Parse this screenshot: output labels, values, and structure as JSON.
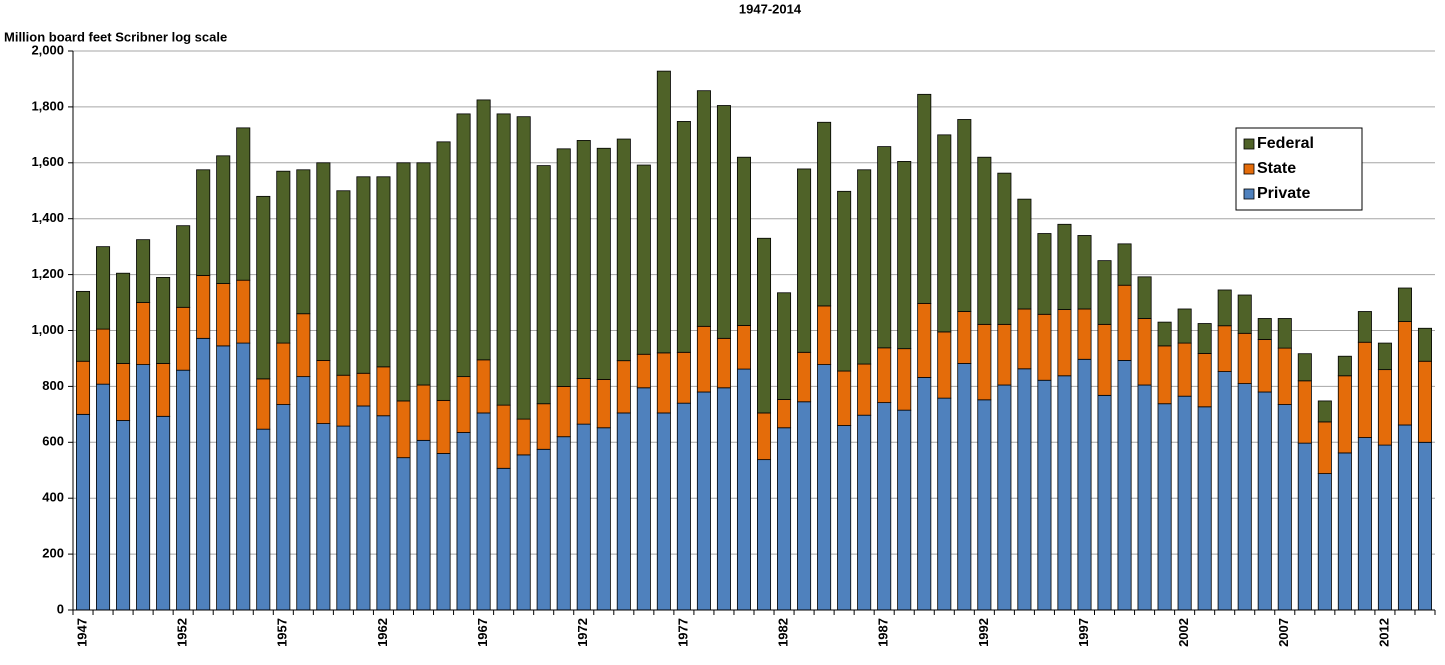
{
  "chart_data": {
    "type": "stacked-bar",
    "title": "1947-2014",
    "y_label": "Million board feet Scribner log scale",
    "categories": [
      "1947",
      null,
      null,
      null,
      null,
      "1952",
      null,
      null,
      null,
      null,
      "1957",
      null,
      null,
      null,
      null,
      "1962",
      null,
      null,
      null,
      null,
      "1967",
      null,
      null,
      null,
      null,
      "1972",
      null,
      null,
      null,
      null,
      "1977",
      null,
      null,
      null,
      null,
      "1982",
      null,
      null,
      null,
      null,
      "1987",
      null,
      null,
      null,
      null,
      "1992",
      null,
      null,
      null,
      null,
      "1997",
      null,
      null,
      null,
      null,
      "2002",
      null,
      null,
      null,
      null,
      "2007",
      null,
      null,
      null,
      null,
      "2012",
      null,
      null
    ],
    "series": [
      {
        "name": "Private",
        "color": "#4f81bd",
        "values": [
          700,
          808,
          678,
          878,
          693,
          858,
          972,
          945,
          955,
          647,
          735,
          835,
          667,
          658,
          730,
          695,
          545,
          607,
          560,
          635,
          705,
          507,
          555,
          575,
          620,
          665,
          652,
          705,
          795,
          705,
          740,
          780,
          795,
          862,
          538,
          652,
          745,
          878,
          660,
          697,
          742,
          715,
          832,
          758,
          882,
          752,
          805,
          863,
          822,
          838,
          897,
          768,
          893,
          805,
          738,
          765,
          727,
          853,
          810,
          780,
          735,
          597,
          488,
          562,
          617,
          590,
          662,
          600
        ]
      },
      {
        "name": "State",
        "color": "#e46c0a",
        "values": [
          190,
          197,
          204,
          222,
          189,
          225,
          225,
          223,
          225,
          180,
          220,
          225,
          226,
          182,
          117,
          175,
          203,
          198,
          190,
          200,
          190,
          226,
          128,
          163,
          180,
          163,
          173,
          187,
          120,
          215,
          182,
          235,
          177,
          156,
          167,
          101,
          177,
          210,
          195,
          183,
          196,
          220,
          265,
          237,
          186,
          270,
          217,
          214,
          236,
          237,
          180,
          254,
          269,
          238,
          207,
          190,
          191,
          164,
          180,
          188,
          202,
          223,
          185,
          276,
          341,
          270,
          370,
          290
        ]
      },
      {
        "name": "Federal",
        "color": "#4f6228",
        "values": [
          250,
          295,
          323,
          225,
          308,
          292,
          378,
          457,
          545,
          653,
          615,
          515,
          707,
          660,
          703,
          680,
          852,
          795,
          925,
          940,
          930,
          1042,
          1082,
          852,
          850,
          852,
          827,
          793,
          677,
          1008,
          826,
          843,
          833,
          602,
          625,
          382,
          656,
          657,
          643,
          695,
          720,
          670,
          748,
          705,
          687,
          598,
          541,
          393,
          289,
          305,
          263,
          228,
          148,
          149,
          85,
          122,
          107,
          128,
          137,
          75,
          106,
          97,
          75,
          70,
          110,
          95,
          120,
          118
        ]
      }
    ],
    "ylim": [
      0,
      2000
    ],
    "yticks": [
      0,
      200,
      400,
      600,
      800,
      {
        "value": 1000,
        "label": "1,000"
      },
      {
        "value": 1200,
        "label": "1,200"
      },
      {
        "value": 1400,
        "label": "1,400"
      },
      {
        "value": 1600,
        "label": "1,600"
      },
      {
        "value": 1800,
        "label": "1,800"
      },
      {
        "value": 2000,
        "label": "2,000"
      }
    ],
    "grid": true,
    "legend": "top-right"
  }
}
